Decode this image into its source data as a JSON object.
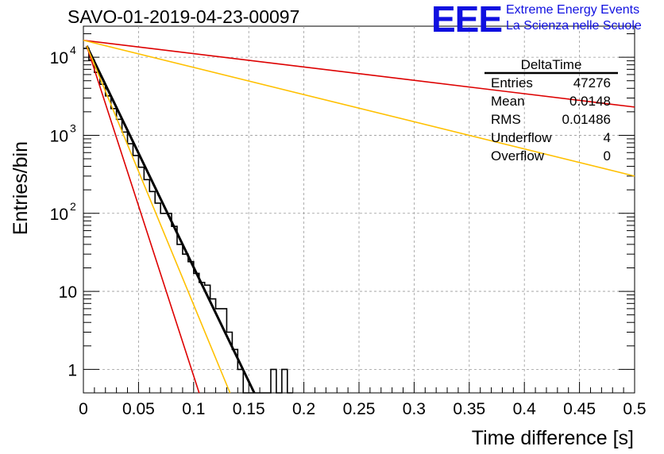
{
  "header": {
    "title": "SAVO-01-2019-04-23-00097",
    "logo_text": "EEE",
    "logo_line1": "Extreme Energy Events",
    "logo_line2": "La Scienza nelle Scuole",
    "logo_color": "#1010e0"
  },
  "stats": {
    "name": "DeltaTime",
    "rows": [
      {
        "label": "Entries",
        "value": "47276"
      },
      {
        "label": "Mean",
        "value": "0.0148"
      },
      {
        "label": "RMS",
        "value": "0.01486"
      },
      {
        "label": "Underflow",
        "value": "4"
      },
      {
        "label": "Overflow",
        "value": "0"
      }
    ]
  },
  "chart_data": {
    "type": "line",
    "title": "SAVO-01-2019-04-23-00097",
    "xlabel": "Time difference [s]",
    "ylabel": "Entries/bin",
    "xlim": [
      0,
      0.5
    ],
    "ylim": [
      0.5,
      25000
    ],
    "yscale": "log",
    "grid": true,
    "xticks": [
      "0",
      "0.05",
      "0.1",
      "0.15",
      "0.2",
      "0.25",
      "0.3",
      "0.35",
      "0.4",
      "0.45",
      "0.5"
    ],
    "yticks": [
      {
        "value": 1,
        "label": "1"
      },
      {
        "value": 10,
        "label": "10"
      },
      {
        "value": 100,
        "label": "10",
        "exp": "2"
      },
      {
        "value": 1000,
        "label": "10",
        "exp": "3"
      },
      {
        "value": 10000,
        "label": "10",
        "exp": "4"
      }
    ],
    "histogram": {
      "color": "#000000",
      "bin_width": 0.005,
      "bins": [
        {
          "x": 0.0,
          "y": 13000
        },
        {
          "x": 0.005,
          "y": 9200
        },
        {
          "x": 0.01,
          "y": 6400
        },
        {
          "x": 0.015,
          "y": 4500
        },
        {
          "x": 0.02,
          "y": 3200
        },
        {
          "x": 0.025,
          "y": 2200
        },
        {
          "x": 0.03,
          "y": 1600
        },
        {
          "x": 0.035,
          "y": 1100
        },
        {
          "x": 0.04,
          "y": 780
        },
        {
          "x": 0.045,
          "y": 550
        },
        {
          "x": 0.05,
          "y": 390
        },
        {
          "x": 0.055,
          "y": 270
        },
        {
          "x": 0.06,
          "y": 190
        },
        {
          "x": 0.065,
          "y": 135
        },
        {
          "x": 0.07,
          "y": 100
        },
        {
          "x": 0.075,
          "y": 100
        },
        {
          "x": 0.08,
          "y": 68
        },
        {
          "x": 0.085,
          "y": 40
        },
        {
          "x": 0.09,
          "y": 30
        },
        {
          "x": 0.095,
          "y": 24
        },
        {
          "x": 0.1,
          "y": 17
        },
        {
          "x": 0.105,
          "y": 13
        },
        {
          "x": 0.11,
          "y": 12
        },
        {
          "x": 0.115,
          "y": 8
        },
        {
          "x": 0.12,
          "y": 6
        },
        {
          "x": 0.125,
          "y": 6
        },
        {
          "x": 0.13,
          "y": 3
        },
        {
          "x": 0.135,
          "y": 1.8
        },
        {
          "x": 0.14,
          "y": 1
        },
        {
          "x": 0.145,
          "y": 0.5
        },
        {
          "x": 0.15,
          "y": 0.5
        },
        {
          "x": 0.155,
          "y": 0.5
        },
        {
          "x": 0.16,
          "y": 0.5
        },
        {
          "x": 0.165,
          "y": 0.5
        },
        {
          "x": 0.17,
          "y": 1
        },
        {
          "x": 0.175,
          "y": 0.5
        },
        {
          "x": 0.18,
          "y": 1
        },
        {
          "x": 0.185,
          "y": 0.5
        }
      ]
    },
    "lines": [
      {
        "color": "#000000",
        "width": 3,
        "points": [
          [
            0.003,
            14000
          ],
          [
            0.155,
            0.5
          ]
        ]
      },
      {
        "color": "#dd0000",
        "width": 1.6,
        "points": [
          [
            0.003,
            14000
          ],
          [
            0.105,
            0.5
          ]
        ]
      },
      {
        "color": "#ffc000",
        "width": 1.6,
        "points": [
          [
            0.003,
            14000
          ],
          [
            0.133,
            0.5
          ]
        ]
      },
      {
        "color": "#dd0000",
        "width": 1.6,
        "points": [
          [
            0.0,
            16500
          ],
          [
            0.5,
            2300
          ]
        ]
      },
      {
        "color": "#ffc000",
        "width": 1.6,
        "points": [
          [
            0.0,
            16500
          ],
          [
            0.5,
            300
          ]
        ]
      }
    ]
  }
}
